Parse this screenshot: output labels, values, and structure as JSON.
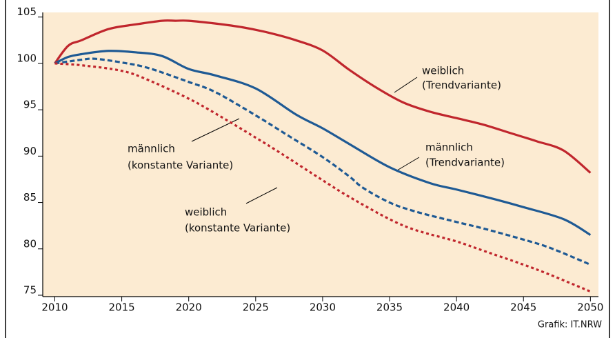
{
  "chart_data": {
    "type": "line",
    "xlim": [
      2009.1,
      2050.6
    ],
    "ylim": [
      74.85,
      105.5
    ],
    "xticks": [
      2010,
      2015,
      2020,
      2025,
      2030,
      2035,
      2040,
      2045,
      2050
    ],
    "yticks": [
      75,
      80,
      85,
      90,
      95,
      100,
      105
    ],
    "background": "#fcebd2",
    "series": [
      {
        "name": "weiblich (Trendvariante)",
        "color": "#c0262d",
        "dash": "solid",
        "x": [
          2010,
          2011,
          2012,
          2014,
          2016,
          2018,
          2019,
          2020,
          2022,
          2024,
          2026,
          2028,
          2030,
          2032,
          2034,
          2036,
          2038,
          2040,
          2042,
          2044,
          2046,
          2048,
          2050
        ],
        "values": [
          100,
          101.9,
          102.5,
          103.7,
          104.2,
          104.6,
          104.6,
          104.6,
          104.3,
          103.9,
          103.3,
          102.5,
          101.4,
          99.3,
          97.4,
          95.8,
          94.8,
          94.1,
          93.4,
          92.5,
          91.6,
          90.6,
          88.2
        ]
      },
      {
        "name": "männlich (Trendvariante)",
        "color": "#1f5a94",
        "dash": "solid",
        "x": [
          2010,
          2011,
          2012,
          2014,
          2016,
          2018,
          2020,
          2022,
          2025,
          2028,
          2030,
          2032,
          2035,
          2038,
          2040,
          2043,
          2045,
          2048,
          2050
        ],
        "values": [
          100,
          100.7,
          101.0,
          101.35,
          101.2,
          100.8,
          99.4,
          98.7,
          97.3,
          94.5,
          93.0,
          91.3,
          88.8,
          87.1,
          86.4,
          85.3,
          84.5,
          83.2,
          81.5
        ]
      },
      {
        "name": "männlich (konstante Variante)",
        "color": "#1f5a94",
        "dash": "dashed",
        "x": [
          2010,
          2012,
          2013,
          2015,
          2017,
          2020,
          2022,
          2025,
          2027,
          2030,
          2032,
          2033,
          2035,
          2037,
          2040,
          2042,
          2045,
          2047,
          2050
        ],
        "values": [
          100,
          100.4,
          100.5,
          100.1,
          99.5,
          98.0,
          96.9,
          94.4,
          92.6,
          89.9,
          87.8,
          86.6,
          85.0,
          84.0,
          82.9,
          82.2,
          81.0,
          80.1,
          78.3
        ]
      },
      {
        "name": "weiblich (konstante Variante)",
        "color": "#c0262d",
        "dash": "dotted",
        "x": [
          2010,
          2012,
          2015,
          2017,
          2020,
          2022,
          2025,
          2027,
          2030,
          2032,
          2035,
          2037,
          2040,
          2042,
          2045,
          2047,
          2050
        ],
        "values": [
          100,
          99.8,
          99.2,
          98.2,
          96.2,
          94.6,
          92.0,
          90.2,
          87.4,
          85.6,
          83.2,
          82.0,
          80.8,
          79.8,
          78.3,
          77.2,
          75.4
        ]
      }
    ],
    "annotations": [
      {
        "lines": [
          "weiblich",
          "(Trendvariante)"
        ]
      },
      {
        "lines": [
          "männlich",
          "(Trendvariante)"
        ]
      },
      {
        "lines": [
          "männlich",
          "(konstante Variante)"
        ]
      },
      {
        "lines": [
          "weiblich",
          "(konstante Variante)"
        ]
      }
    ],
    "source": "Grafik: IT.NRW"
  }
}
